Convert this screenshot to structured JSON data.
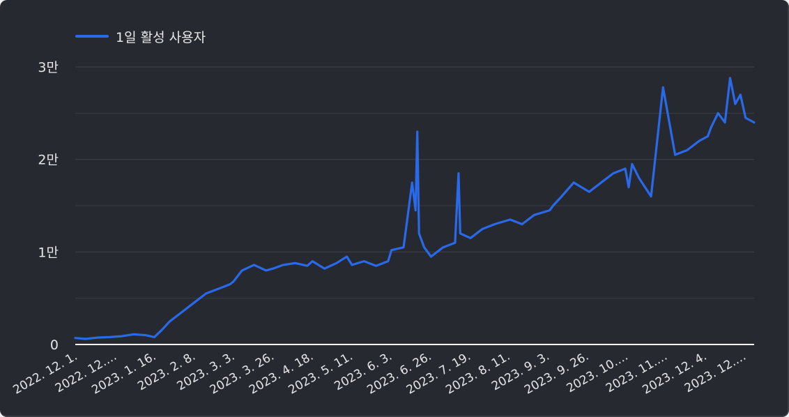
{
  "colors": {
    "background": "#262930",
    "line": "#2a6ae8",
    "grid": "#3d4048",
    "axis": "#ffffff",
    "text": "#e6e6e8"
  },
  "chart_data": {
    "type": "line",
    "title": "",
    "legend_position": "top-left",
    "grid": true,
    "ylim": [
      0,
      30000
    ],
    "y_ticks": [
      {
        "value": 0,
        "label": "0"
      },
      {
        "value": 10000,
        "label": "1만"
      },
      {
        "value": 20000,
        "label": "2만"
      },
      {
        "value": 30000,
        "label": "3만"
      }
    ],
    "x_range": [
      "2022-12-01",
      "2023-12-31"
    ],
    "x_tick_labels": [
      "2022. 12. 1.",
      "2022. 12.…",
      "2023. 1. 16.",
      "2023. 2. 8.",
      "2023. 3. 3.",
      "2023. 3. 26.",
      "2023. 4. 18.",
      "2023. 5. 11.",
      "2023. 6. 3.",
      "2023. 6. 26.",
      "2023. 7. 19.",
      "2023. 8. 11.",
      "2023. 9. 3.",
      "2023. 9. 26.",
      "2023. 10.…",
      "2023. 11.…",
      "2023. 12. 4.",
      "2023. 12.…"
    ],
    "series": [
      {
        "name": "1일 활성 사용자",
        "x": [
          "2022-12-01",
          "2022-12-07",
          "2022-12-14",
          "2022-12-21",
          "2022-12-28",
          "2023-01-04",
          "2023-01-11",
          "2023-01-16",
          "2023-01-20",
          "2023-01-25",
          "2023-02-01",
          "2023-02-08",
          "2023-02-15",
          "2023-02-22",
          "2023-03-01",
          "2023-03-03",
          "2023-03-08",
          "2023-03-15",
          "2023-03-22",
          "2023-03-26",
          "2023-04-01",
          "2023-04-08",
          "2023-04-15",
          "2023-04-18",
          "2023-04-25",
          "2023-05-02",
          "2023-05-08",
          "2023-05-11",
          "2023-05-18",
          "2023-05-25",
          "2023-06-01",
          "2023-06-03",
          "2023-06-10",
          "2023-06-15",
          "2023-06-17",
          "2023-06-18",
          "2023-06-19",
          "2023-06-22",
          "2023-06-26",
          "2023-07-03",
          "2023-07-10",
          "2023-07-12",
          "2023-07-13",
          "2023-07-19",
          "2023-07-26",
          "2023-08-02",
          "2023-08-11",
          "2023-08-18",
          "2023-08-25",
          "2023-09-03",
          "2023-09-05",
          "2023-09-10",
          "2023-09-17",
          "2023-09-26",
          "2023-10-03",
          "2023-10-10",
          "2023-10-17",
          "2023-10-19",
          "2023-10-21",
          "2023-10-25",
          "2023-11-01",
          "2023-11-08",
          "2023-11-15",
          "2023-11-22",
          "2023-11-29",
          "2023-12-04",
          "2023-12-06",
          "2023-12-10",
          "2023-12-14",
          "2023-12-17",
          "2023-12-20",
          "2023-12-23",
          "2023-12-26",
          "2023-12-31"
        ],
        "values": [
          700,
          600,
          750,
          800,
          900,
          1100,
          1000,
          800,
          1500,
          2500,
          3500,
          4500,
          5500,
          6000,
          6500,
          6800,
          8000,
          8600,
          8000,
          8200,
          8600,
          8800,
          8500,
          9000,
          8200,
          8800,
          9500,
          8600,
          9000,
          8500,
          9000,
          10200,
          10500,
          17500,
          14500,
          23000,
          12000,
          10500,
          9500,
          10500,
          11000,
          18500,
          12000,
          11500,
          12500,
          13000,
          13500,
          13000,
          14000,
          14500,
          15000,
          16000,
          17500,
          16500,
          17500,
          18500,
          19000,
          17000,
          19500,
          18000,
          16000,
          27800,
          20500,
          21000,
          22000,
          22500,
          23500,
          25000,
          24000,
          28800,
          26000,
          27000,
          24500,
          24000
        ]
      }
    ]
  }
}
